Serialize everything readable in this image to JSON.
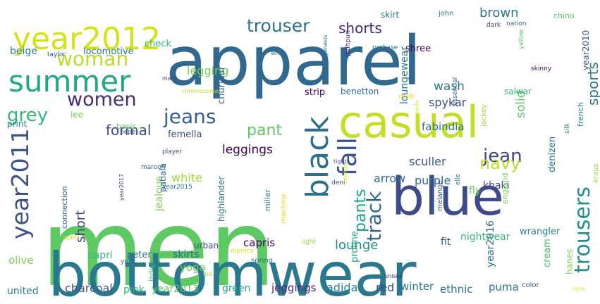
{
  "palette": {
    "dark_blue": "#3b528b",
    "teal_blue": "#31688e",
    "mid_teal": "#26828e",
    "green": "#5ec962",
    "light_green": "#7ad151",
    "yellow_green": "#bddf26",
    "purple": "#482878",
    "deep_purple": "#46327e",
    "sea_green": "#35b779"
  },
  "words": [
    {
      "id": "men",
      "text": "men",
      "color": "#5ec962"
    },
    {
      "id": "apparel",
      "text": "apparel",
      "color": "#31688e"
    },
    {
      "id": "bottomwear",
      "text": "bottomwear",
      "color": "#2a788e"
    },
    {
      "id": "casual",
      "text": "casual",
      "color": "#c0df25"
    },
    {
      "id": "blue",
      "text": "blue",
      "color": "#3e4a89"
    },
    {
      "id": "year2012",
      "text": "year2012",
      "color": "#d5e21a"
    },
    {
      "id": "summer",
      "text": "summer",
      "color": "#22a884"
    },
    {
      "id": "woman",
      "text": "woman",
      "color": "#b8de29"
    },
    {
      "id": "women",
      "text": "women",
      "color": "#472c7a"
    },
    {
      "id": "trouser",
      "text": "trouser",
      "color": "#2c728e"
    },
    {
      "id": "shorts",
      "text": "shorts",
      "color": "#482475"
    },
    {
      "id": "grey",
      "text": "grey",
      "color": "#35b779"
    },
    {
      "id": "jeans",
      "text": "jeans",
      "color": "#355f8d"
    },
    {
      "id": "black",
      "text": "black",
      "color": "#2e6e8e"
    },
    {
      "id": "fall",
      "text": "fall",
      "color": "#3b528b"
    },
    {
      "id": "year2011",
      "text": "year2011",
      "color": "#3b528b"
    },
    {
      "id": "jean",
      "text": "jean",
      "color": "#414487"
    },
    {
      "id": "navy",
      "text": "navy",
      "color": "#bddf26"
    },
    {
      "id": "trousers",
      "text": "trousers",
      "color": "#21908d"
    },
    {
      "id": "track",
      "text": "track",
      "color": "#31688e"
    },
    {
      "id": "pants",
      "text": "pants",
      "color": "#20a386"
    },
    {
      "id": "sports",
      "text": "sports",
      "color": "#2a788e"
    },
    {
      "id": "brown",
      "text": "brown",
      "color": "#2a788e"
    },
    {
      "id": "legging",
      "text": "legging",
      "color": "#7ad151"
    },
    {
      "id": "pant",
      "text": "pant",
      "color": "#5ec962"
    },
    {
      "id": "formal",
      "text": "formal",
      "color": "#3e4a89"
    },
    {
      "id": "leggings",
      "text": "leggings",
      "color": "#440154"
    },
    {
      "id": "solid",
      "text": "solid",
      "color": "#5ec962"
    },
    {
      "id": "wash",
      "text": "wash",
      "color": "#2a788e"
    },
    {
      "id": "spykar",
      "text": "spykar",
      "color": "#3b528b"
    },
    {
      "id": "loungewear",
      "text": "loungewear",
      "color": "#2a788e"
    },
    {
      "id": "fabindia",
      "text": "fabindia",
      "color": "#2c728e"
    },
    {
      "id": "lounge",
      "text": "lounge",
      "color": "#21908d"
    },
    {
      "id": "white",
      "text": "white",
      "color": "#a0da39"
    },
    {
      "id": "short",
      "text": "short",
      "color": "#414487"
    },
    {
      "id": "sculler",
      "text": "sculler",
      "color": "#3b528b"
    },
    {
      "id": "arrow",
      "text": "arrow",
      "color": "#31688e"
    },
    {
      "id": "purple",
      "text": "purple",
      "color": "#2c728e"
    },
    {
      "id": "capris",
      "text": "capris",
      "color": "#440154"
    },
    {
      "id": "capri",
      "text": "capri",
      "color": "#35b779"
    },
    {
      "id": "skirts",
      "text": "skirts",
      "color": "#31688e"
    },
    {
      "id": "yoga",
      "text": "yoga",
      "color": "#6ccd5a"
    },
    {
      "id": "charcoal",
      "text": "charcoal",
      "color": "#3b528b"
    },
    {
      "id": "olive",
      "text": "olive",
      "color": "#7ad151"
    },
    {
      "id": "united",
      "text": "united",
      "color": "#26828e"
    },
    {
      "id": "pink",
      "text": "pink",
      "color": "#35b779"
    },
    {
      "id": "year2013",
      "text": "year2013",
      "color": "#5ec962"
    },
    {
      "id": "green",
      "text": "green",
      "color": "#20a386"
    },
    {
      "id": "jeggings",
      "text": "jeggings",
      "color": "#482878"
    },
    {
      "id": "adidas",
      "text": "adidas",
      "color": "#26828e"
    },
    {
      "id": "red",
      "text": "red",
      "color": "#3e4a89"
    },
    {
      "id": "winter",
      "text": "winter",
      "color": "#2a788e"
    },
    {
      "id": "ethnic",
      "text": "ethnic",
      "color": "#2c728e"
    },
    {
      "id": "puma",
      "text": "puma",
      "color": "#2a788e"
    },
    {
      "id": "year2016",
      "text": "year2016",
      "color": "#31688e"
    },
    {
      "id": "nightwear",
      "text": "nightwear",
      "color": "#35b779"
    },
    {
      "id": "fit",
      "text": "fit",
      "color": "#3b528b"
    },
    {
      "id": "proline",
      "text": "proline",
      "color": "#1fa187"
    },
    {
      "id": "wrangler",
      "text": "wrangler",
      "color": "#26828e"
    },
    {
      "id": "khaki",
      "text": "khaki",
      "color": "#3e4a89"
    },
    {
      "id": "fly",
      "text": "fly",
      "color": "#6ccd5a"
    },
    {
      "id": "denizen",
      "text": "denizen",
      "color": "#2a788e"
    },
    {
      "id": "cream",
      "text": "cream",
      "color": "#44bf70"
    },
    {
      "id": "hanes",
      "text": "hanes",
      "color": "#7ad151"
    },
    {
      "id": "year2010",
      "text": "year2010",
      "color": "#3b528b"
    },
    {
      "id": "beige",
      "text": "beige",
      "color": "#26828e"
    },
    {
      "id": "locomotive",
      "text": "locomotive",
      "color": "#2a788e"
    },
    {
      "id": "check",
      "text": "check",
      "color": "#35b779"
    },
    {
      "id": "churidar",
      "text": "churidar",
      "color": "#31688e"
    },
    {
      "id": "femella",
      "text": "femella",
      "color": "#3e4a89"
    },
    {
      "id": "lee",
      "text": "lee",
      "color": "#7ad151"
    },
    {
      "id": "print",
      "text": "print",
      "color": "#26828e"
    },
    {
      "id": "basic",
      "text": "basic",
      "color": "#5ec962"
    },
    {
      "id": "pepe",
      "text": "pepe",
      "color": "#3b528b"
    },
    {
      "id": "strip",
      "text": "strip",
      "color": "#440154"
    },
    {
      "id": "benetton",
      "text": "benetton",
      "color": "#31688e"
    },
    {
      "id": "salwar",
      "text": "salwar",
      "color": "#35b779"
    },
    {
      "id": "skirt",
      "text": "skirt",
      "color": "#2a788e"
    },
    {
      "id": "john",
      "text": "john",
      "color": "#2a788e"
    },
    {
      "id": "chino",
      "text": "chino",
      "color": "#5ec962"
    },
    {
      "id": "dark",
      "text": "dark",
      "color": "#414487"
    },
    {
      "id": "nation",
      "text": "nation",
      "color": "#31688e"
    },
    {
      "id": "shree",
      "text": "shree",
      "color": "#440154"
    },
    {
      "id": "probase",
      "text": "probase",
      "color": "#2a788e"
    },
    {
      "id": "jodhpuri",
      "text": "jodhpuri",
      "color": "#482878"
    },
    {
      "id": "genesis",
      "text": "genesis",
      "color": "#2c728e"
    },
    {
      "id": "aneri",
      "text": "aneri",
      "color": "#2a788e"
    },
    {
      "id": "taylor",
      "text": "taylor",
      "color": "#3b528b"
    },
    {
      "id": "mark",
      "text": "mark",
      "color": "#414487"
    },
    {
      "id": "skinny",
      "text": "skinny",
      "color": "#440154"
    },
    {
      "id": "yellow",
      "text": "yellow",
      "color": "#5ec962"
    },
    {
      "id": "chromozome",
      "text": "chromozome",
      "color": "#bddf26"
    },
    {
      "id": "multi",
      "text": "multi",
      "color": "#dde318"
    },
    {
      "id": "essential",
      "text": "essential",
      "color": "#31688e"
    },
    {
      "id": "jockey",
      "text": "jockey",
      "color": "#a0da39"
    },
    {
      "id": "aurelia",
      "text": "aurelia",
      "color": "#dde318"
    },
    {
      "id": "french",
      "text": "french",
      "color": "#2a788e"
    },
    {
      "id": "silk",
      "text": "silk",
      "color": "#2a788e"
    },
    {
      "id": "kraus",
      "text": "kraus",
      "color": "#a0da39"
    },
    {
      "id": "maroon",
      "text": "maroon",
      "color": "#31688e"
    },
    {
      "id": "connection",
      "text": "connection",
      "color": "#31688e"
    },
    {
      "id": "player",
      "text": "player",
      "color": "#3b528b"
    },
    {
      "id": "jealous",
      "text": "jealous",
      "color": "#7ad151"
    },
    {
      "id": "patiala",
      "text": "patiala",
      "color": "#31688e"
    },
    {
      "id": "highlander",
      "text": "highlander",
      "color": "#2a788e"
    },
    {
      "id": "machine",
      "text": "machine",
      "color": "#dde318"
    },
    {
      "id": "miller",
      "text": "miller",
      "color": "#2a788e"
    },
    {
      "id": "tights",
      "text": "tights",
      "color": "#3b528b"
    },
    {
      "id": "deni",
      "text": "deni",
      "color": "#3b528b"
    },
    {
      "id": "elle",
      "text": "elle",
      "color": "#2c728e"
    },
    {
      "id": "orange",
      "text": "orange",
      "color": "#dde318"
    },
    {
      "id": "melange",
      "text": "melange",
      "color": "#3b528b"
    },
    {
      "id": "england",
      "text": "england",
      "color": "#7ad151"
    },
    {
      "id": "year2017",
      "text": "year2017",
      "color": "#3e4a89"
    },
    {
      "id": "year2015",
      "text": "year2015",
      "color": "#2a788e"
    },
    {
      "id": "sport",
      "text": "sport",
      "color": "#bddf26"
    },
    {
      "id": "peter",
      "text": "peter",
      "color": "#2c728e"
    },
    {
      "id": "light",
      "text": "light",
      "color": "#a0da39"
    },
    {
      "id": "indigo",
      "text": "indigo",
      "color": "#35b779"
    },
    {
      "id": "urban",
      "text": "urban",
      "color": "#3b528b"
    },
    {
      "id": "myntra",
      "text": "myntra",
      "color": "#dde318"
    },
    {
      "id": "spring",
      "text": "spring",
      "color": "#2a788e"
    },
    {
      "id": "yo",
      "text": "yo",
      "color": "#31688e"
    },
    {
      "id": "ind",
      "text": "ind",
      "color": "#a0da39"
    },
    {
      "id": "unisex",
      "text": "unisex",
      "color": "#482878"
    },
    {
      "id": "color",
      "text": "color",
      "color": "#31688e"
    },
    {
      "id": "sock",
      "text": "sock",
      "color": "#dde318"
    }
  ]
}
